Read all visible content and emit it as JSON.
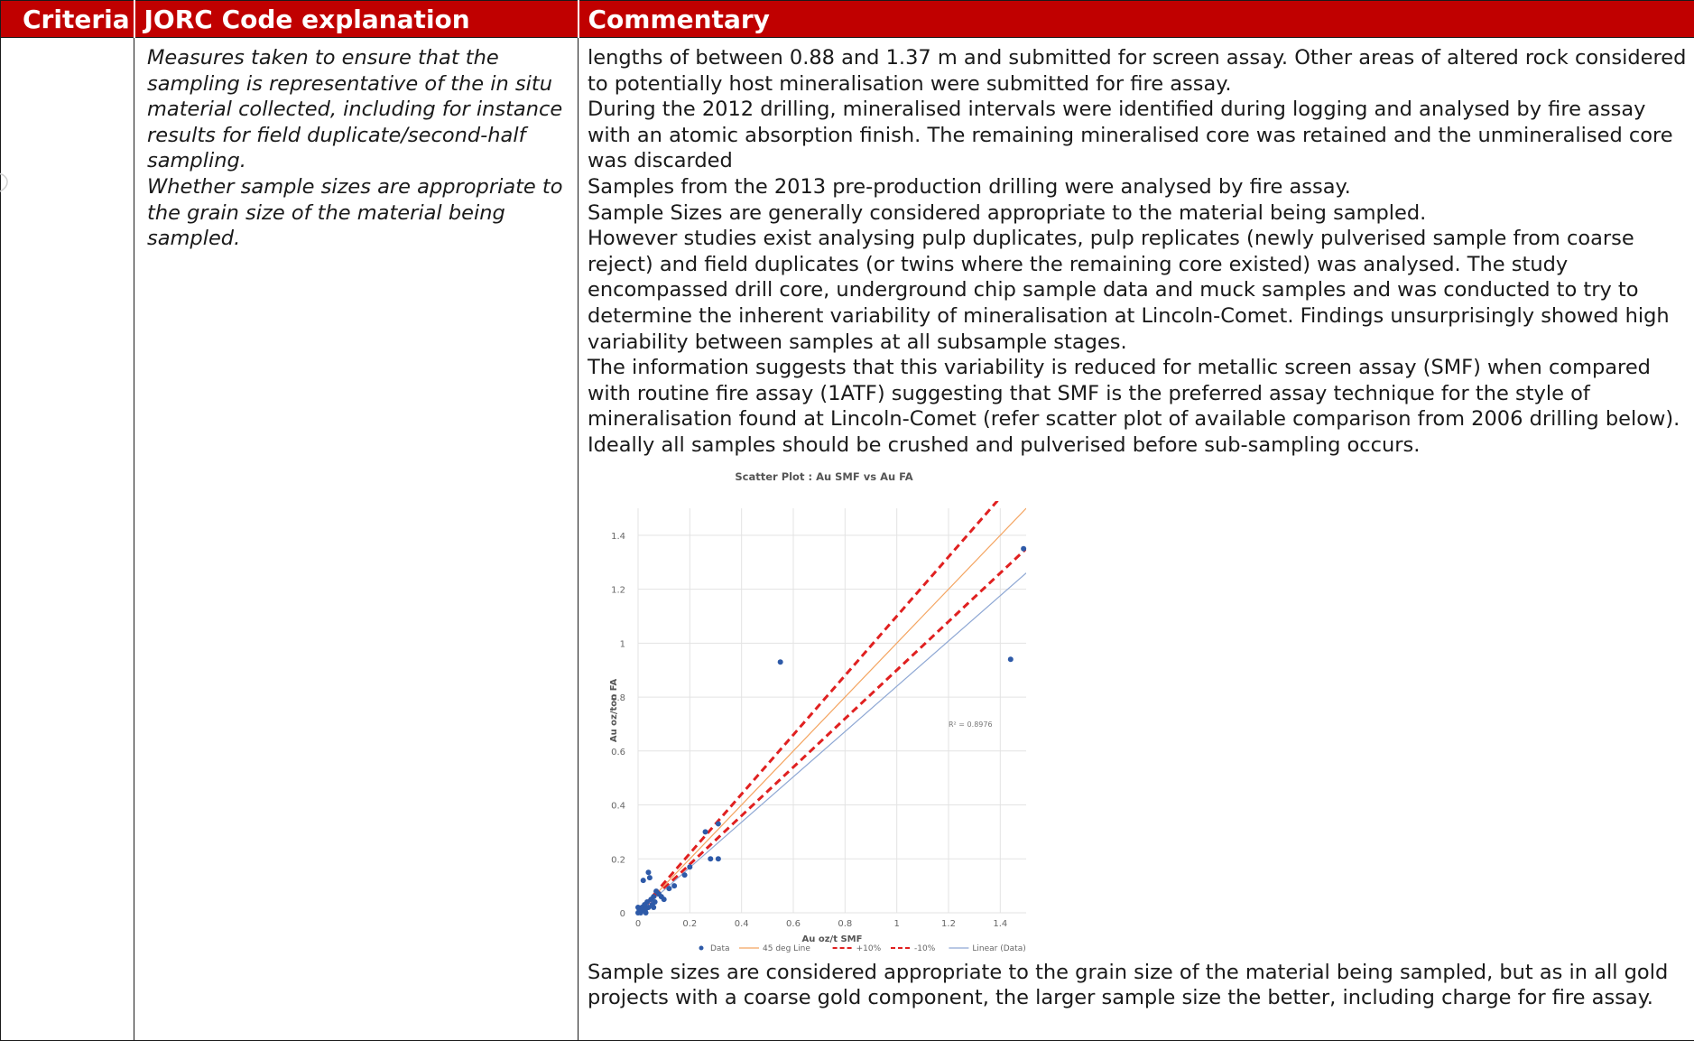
{
  "table": {
    "headers": {
      "criteria": "Criteria",
      "explanation": "JORC Code explanation",
      "commentary": "Commentary"
    },
    "row": {
      "criteria": "",
      "explanation": [
        "Measures taken to ensure that the sampling is representative of the in situ material collected, including for instance results for field duplicate/second-half sampling.",
        "Whether sample sizes are appropriate to the grain size of the material being sampled."
      ],
      "commentary": [
        "lengths of between 0.88 and 1.37 m and submitted for screen assay. Other areas of altered rock considered to potentially host mineralisation were submitted for fire assay.",
        "During the 2012 drilling, mineralised intervals were identified during logging and analysed by fire assay with an atomic absorption finish. The remaining mineralised core was retained and the unmineralised core was discarded",
        "Samples from the 2013 pre-production drilling were analysed by fire assay.",
        "Sample Sizes are generally considered appropriate to the material being sampled.",
        "However studies exist analysing pulp duplicates, pulp replicates (newly pulverised sample from coarse reject) and field duplicates (or twins where the remaining core existed) was analysed. The study encompassed drill core, underground chip sample data and muck samples and was conducted to try to determine the inherent variability of mineralisation at Lincoln-Comet. Findings unsurprisingly showed high variability between samples at all subsample stages.",
        "The information suggests that this variability is reduced for metallic screen assay (SMF) when compared with routine fire assay (1ATF) suggesting that SMF is the preferred assay technique for the style of mineralisation found at Lincoln-Comet (refer scatter plot of available comparison from 2006 drilling below). Ideally all samples should be crushed and pulverised before sub-sampling occurs."
      ],
      "commentary_after_chart": "Sample sizes are considered appropriate to the grain size of the material being sampled, but as in all gold projects with a coarse gold component, the larger sample size the better, including charge for fire assay."
    }
  },
  "colors": {
    "header_bg": "#c00000",
    "header_text": "#ffffff",
    "data_points": "#2e5aa8",
    "line_45": "#f4a460",
    "line_pm10": "#e02020",
    "line_linear": "#8fa8d4"
  },
  "chart_data": {
    "type": "scatter",
    "title": "Scatter Plot : Au SMF vs Au FA",
    "xlabel": "Au oz/t SMF",
    "ylabel": "Au oz/ton FA",
    "xlim": [
      0,
      1.5
    ],
    "ylim": [
      0,
      1.5
    ],
    "xticks": [
      0,
      0.2,
      0.4,
      0.6,
      0.8,
      1,
      1.2,
      1.4
    ],
    "yticks": [
      0,
      0.2,
      0.4,
      0.6,
      0.8,
      1,
      1.2,
      1.4
    ],
    "xtick_labels": [
      "0",
      "0.2",
      "0.4",
      "0.6",
      "0.8",
      "1",
      "1.2",
      "1.4"
    ],
    "ytick_labels": [
      "0",
      "0.2",
      "0.4",
      "0.6",
      "0.8",
      "1",
      "1.2",
      "1.4"
    ],
    "grid": true,
    "legend_position": "bottom",
    "annotation": "R² = 0.8976",
    "series": [
      {
        "name": "Data",
        "kind": "points",
        "points": [
          [
            0.0,
            0.0
          ],
          [
            0.005,
            0.01
          ],
          [
            0.01,
            0.005
          ],
          [
            0.015,
            0.02
          ],
          [
            0.02,
            0.01
          ],
          [
            0.025,
            0.03
          ],
          [
            0.03,
            0.015
          ],
          [
            0.035,
            0.04
          ],
          [
            0.04,
            0.02
          ],
          [
            0.05,
            0.05
          ],
          [
            0.055,
            0.03
          ],
          [
            0.06,
            0.06
          ],
          [
            0.065,
            0.04
          ],
          [
            0.07,
            0.08
          ],
          [
            0.08,
            0.07
          ],
          [
            0.1,
            0.05
          ],
          [
            0.12,
            0.09
          ],
          [
            0.02,
            0.12
          ],
          [
            0.04,
            0.15
          ],
          [
            0.045,
            0.13
          ],
          [
            0.2,
            0.17
          ],
          [
            0.26,
            0.3
          ],
          [
            0.28,
            0.2
          ],
          [
            0.31,
            0.2
          ],
          [
            0.31,
            0.33
          ],
          [
            0.55,
            0.93
          ],
          [
            1.44,
            0.94
          ],
          [
            1.49,
            1.35
          ],
          [
            0.01,
            0.0
          ],
          [
            0.0,
            0.02
          ],
          [
            0.03,
            0.0
          ],
          [
            0.06,
            0.02
          ],
          [
            0.09,
            0.06
          ],
          [
            0.14,
            0.1
          ],
          [
            0.18,
            0.14
          ]
        ]
      },
      {
        "name": "45 deg Line",
        "kind": "line",
        "slope": 1.0,
        "intercept": 0
      },
      {
        "name": "+10%",
        "kind": "line",
        "slope": 1.1,
        "intercept": 0
      },
      {
        "name": "-10%",
        "kind": "line",
        "slope": 0.9,
        "intercept": 0
      },
      {
        "name": "Linear (Data)",
        "kind": "line",
        "slope": 0.84,
        "intercept": 0
      }
    ]
  }
}
